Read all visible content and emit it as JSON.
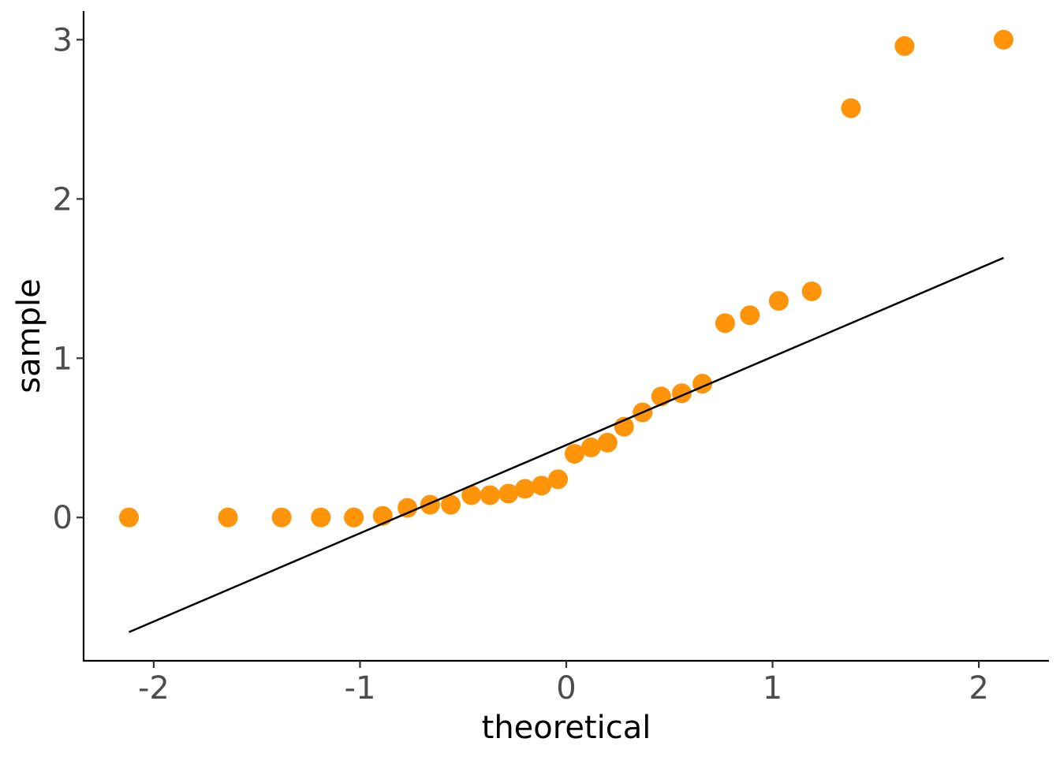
{
  "chart_data": {
    "type": "scatter",
    "xlabel": "theoretical",
    "ylabel": "sample",
    "xlim": [
      -2.34,
      2.34
    ],
    "ylim": [
      -0.9,
      3.18
    ],
    "x_ticks": [
      -2,
      -1,
      0,
      1,
      2
    ],
    "x_tick_labels": [
      "-2",
      "-1",
      "0",
      "1",
      "2"
    ],
    "y_ticks": [
      0,
      1,
      2,
      3
    ],
    "y_tick_labels": [
      "0",
      "1",
      "2",
      "3"
    ],
    "grid": false,
    "point_color": "#FF9408",
    "line_color": "#000000",
    "points": [
      {
        "x": -2.12,
        "y": 0.0
      },
      {
        "x": -1.64,
        "y": 0.0
      },
      {
        "x": -1.38,
        "y": 0.0
      },
      {
        "x": -1.19,
        "y": 0.0
      },
      {
        "x": -1.03,
        "y": 0.0
      },
      {
        "x": -0.89,
        "y": 0.01
      },
      {
        "x": -0.77,
        "y": 0.06
      },
      {
        "x": -0.66,
        "y": 0.08
      },
      {
        "x": -0.56,
        "y": 0.08
      },
      {
        "x": -0.46,
        "y": 0.14
      },
      {
        "x": -0.37,
        "y": 0.14
      },
      {
        "x": -0.28,
        "y": 0.15
      },
      {
        "x": -0.2,
        "y": 0.18
      },
      {
        "x": -0.12,
        "y": 0.2
      },
      {
        "x": -0.04,
        "y": 0.24
      },
      {
        "x": 0.04,
        "y": 0.4
      },
      {
        "x": 0.12,
        "y": 0.44
      },
      {
        "x": 0.2,
        "y": 0.47
      },
      {
        "x": 0.28,
        "y": 0.57
      },
      {
        "x": 0.37,
        "y": 0.66
      },
      {
        "x": 0.46,
        "y": 0.76
      },
      {
        "x": 0.56,
        "y": 0.78
      },
      {
        "x": 0.66,
        "y": 0.84
      },
      {
        "x": 0.77,
        "y": 1.22
      },
      {
        "x": 0.89,
        "y": 1.27
      },
      {
        "x": 1.03,
        "y": 1.36
      },
      {
        "x": 1.19,
        "y": 1.42
      },
      {
        "x": 1.38,
        "y": 2.57
      },
      {
        "x": 1.64,
        "y": 2.96
      },
      {
        "x": 2.12,
        "y": 3.0
      }
    ],
    "reference_line": {
      "x": [
        -2.12,
        2.12
      ],
      "y": [
        -0.72,
        1.63
      ]
    }
  }
}
